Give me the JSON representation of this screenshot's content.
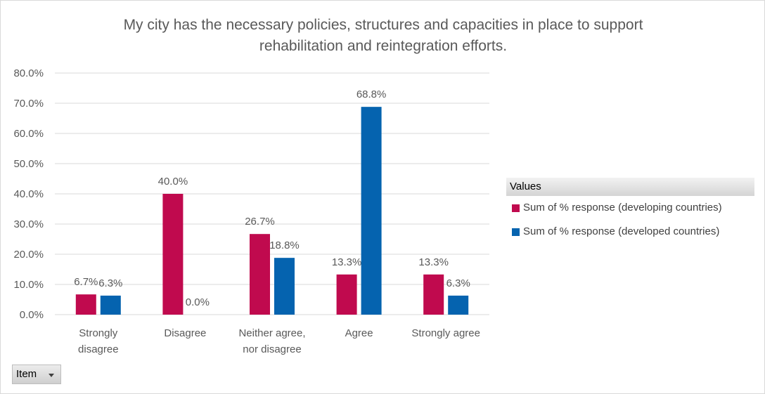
{
  "colors": {
    "developing": "#C00A4E",
    "developed": "#0563AF",
    "grid": "#d9d9d9",
    "text": "#595959"
  },
  "legend": {
    "header": "Values",
    "items": [
      {
        "label": "Sum of % response (developing countries)",
        "color": "#C00A4E"
      },
      {
        "label": "Sum of % response (developed countries)",
        "color": "#0563AF"
      }
    ]
  },
  "pivot": {
    "field_button_label": "Item",
    "dropdown_icon": "triangle-down-icon"
  },
  "chart_data": {
    "type": "bar",
    "title_lines": [
      "My city has the necessary policies, structures and capacities in place to support",
      "rehabilitation and reintegration efforts."
    ],
    "categories": [
      [
        "Strongly",
        "disagree"
      ],
      [
        "Disagree"
      ],
      [
        "Neither agree,",
        "nor disagree"
      ],
      [
        "Agree"
      ],
      [
        "Strongly agree"
      ]
    ],
    "series": [
      {
        "name": "Sum of % response (developing countries)",
        "values": [
          6.7,
          40.0,
          26.7,
          13.3,
          13.3
        ],
        "labels": [
          "6.7%",
          "40.0%",
          "26.7%",
          "13.3%",
          "13.3%"
        ],
        "color": "#C00A4E"
      },
      {
        "name": "Sum of % response (developed countries)",
        "values": [
          6.3,
          0.0,
          18.8,
          68.8,
          6.3
        ],
        "labels": [
          "6.3%",
          "0.0%",
          "18.8%",
          "68.8%",
          "6.3%"
        ],
        "color": "#0563AF"
      }
    ],
    "y_ticks": [
      "0.0%",
      "10.0%",
      "20.0%",
      "30.0%",
      "40.0%",
      "50.0%",
      "60.0%",
      "70.0%",
      "80.0%"
    ],
    "ylim": [
      0,
      80
    ],
    "grid": true,
    "legend_position": "right"
  }
}
